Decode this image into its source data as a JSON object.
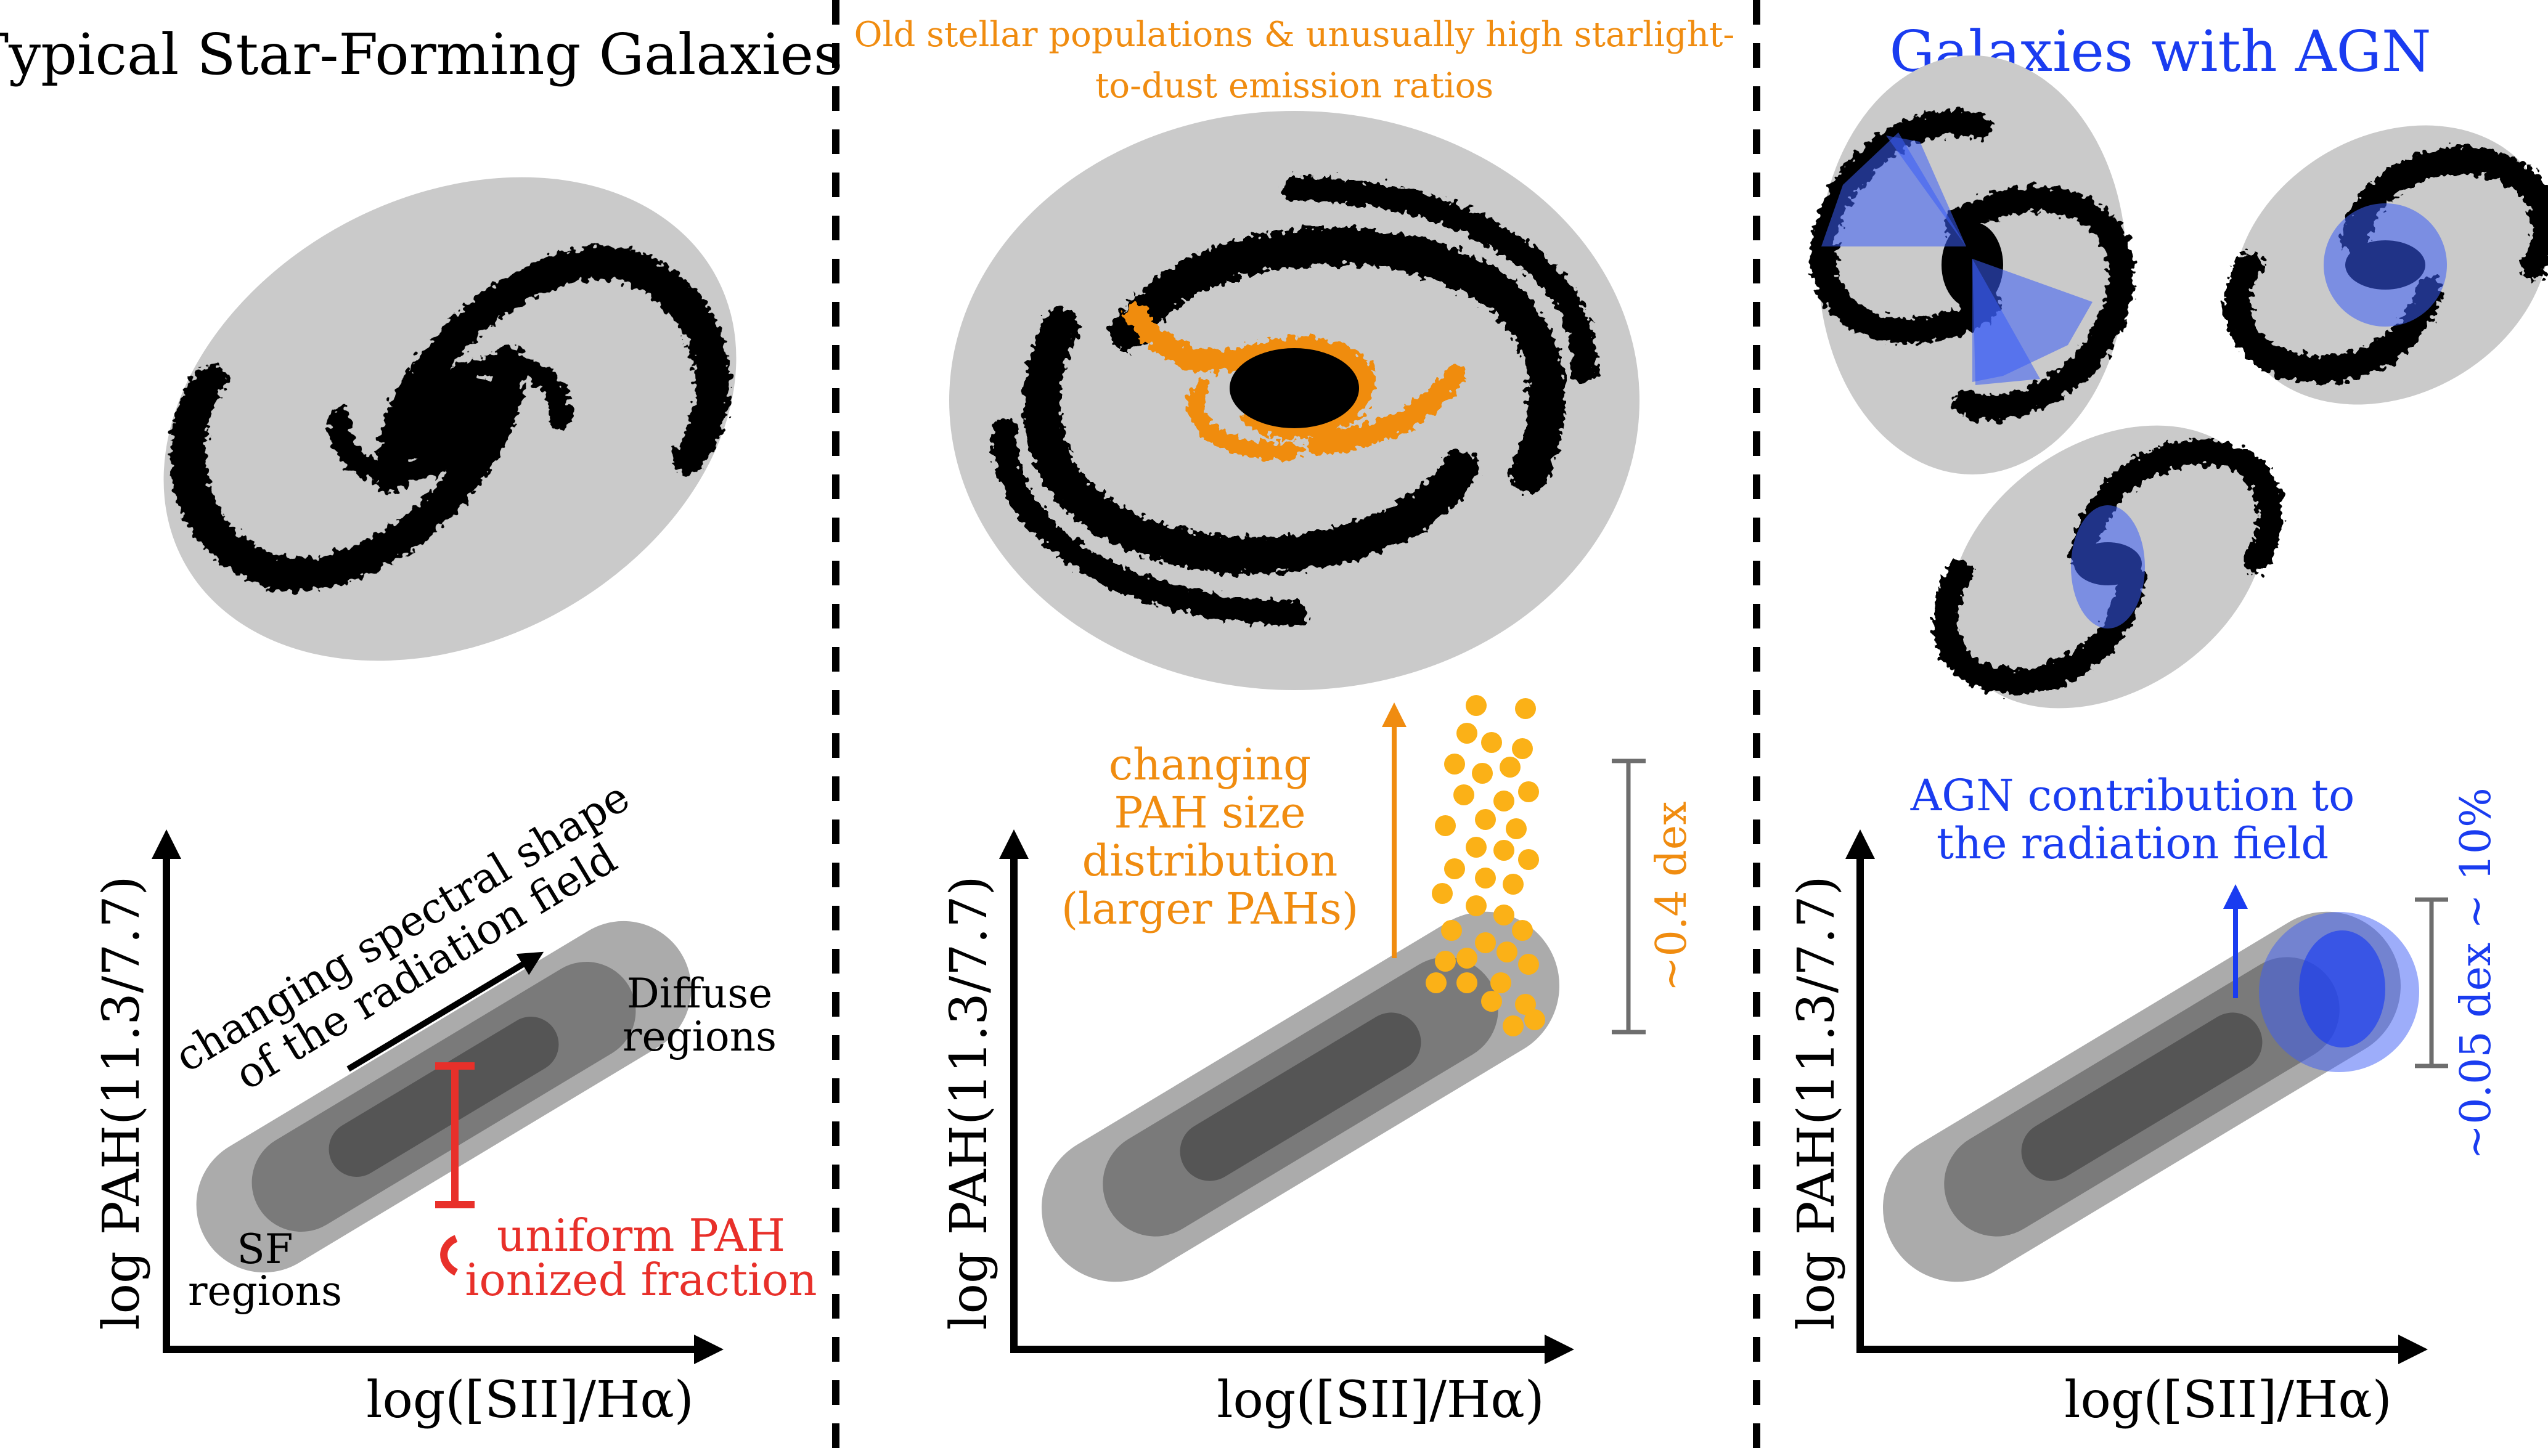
{
  "colors": {
    "black": "#000000",
    "disk_gray": "#cacaca",
    "band_outer": "#ababab",
    "band_mid": "#7a7a7a",
    "band_inner": "#555555",
    "orange": "#f08c10",
    "dot_orange": "#fbb117",
    "red": "#e8302a",
    "blue": "#1a3cf0",
    "agn_fill": "#3b5cf5",
    "bracket_gray": "#6e6e6e"
  },
  "icons": [
    "spiral-galaxy-icon",
    "agn-cone-icon"
  ],
  "panels": {
    "left": {
      "title": "Typical Star-Forming Galaxies",
      "ylabel": "log PAH(11.3/7.7)",
      "xlabel": "log([SII]/Hα)",
      "arrow_label_1": "changing spectral shape",
      "arrow_label_2": "of the radiation field",
      "diffuse_label_1": "Diffuse",
      "diffuse_label_2": "regions",
      "sf_label_1": "SF",
      "sf_label_2": "regions",
      "uniform_label_1": "uniform PAH",
      "uniform_label_2": "ionized fraction"
    },
    "middle": {
      "title_1": "Old stellar populations & unusually high starlight-",
      "title_2": "to-dust emission ratios",
      "ylabel": "log PAH(11.3/7.7)",
      "xlabel": "log([SII]/Hα)",
      "changing_1": "changing",
      "changing_2": "PAH size",
      "changing_3": "distribution",
      "changing_4": "(larger PAHs)",
      "dex_label": "~0.4 dex"
    },
    "right": {
      "title": "Galaxies with AGN",
      "ylabel": "log PAH(11.3/7.7)",
      "xlabel": "log([SII]/Hα)",
      "agn_1": "AGN contribution to",
      "agn_2": "the radiation field",
      "dex_label": "~0.05 dex ~ 10%"
    }
  }
}
